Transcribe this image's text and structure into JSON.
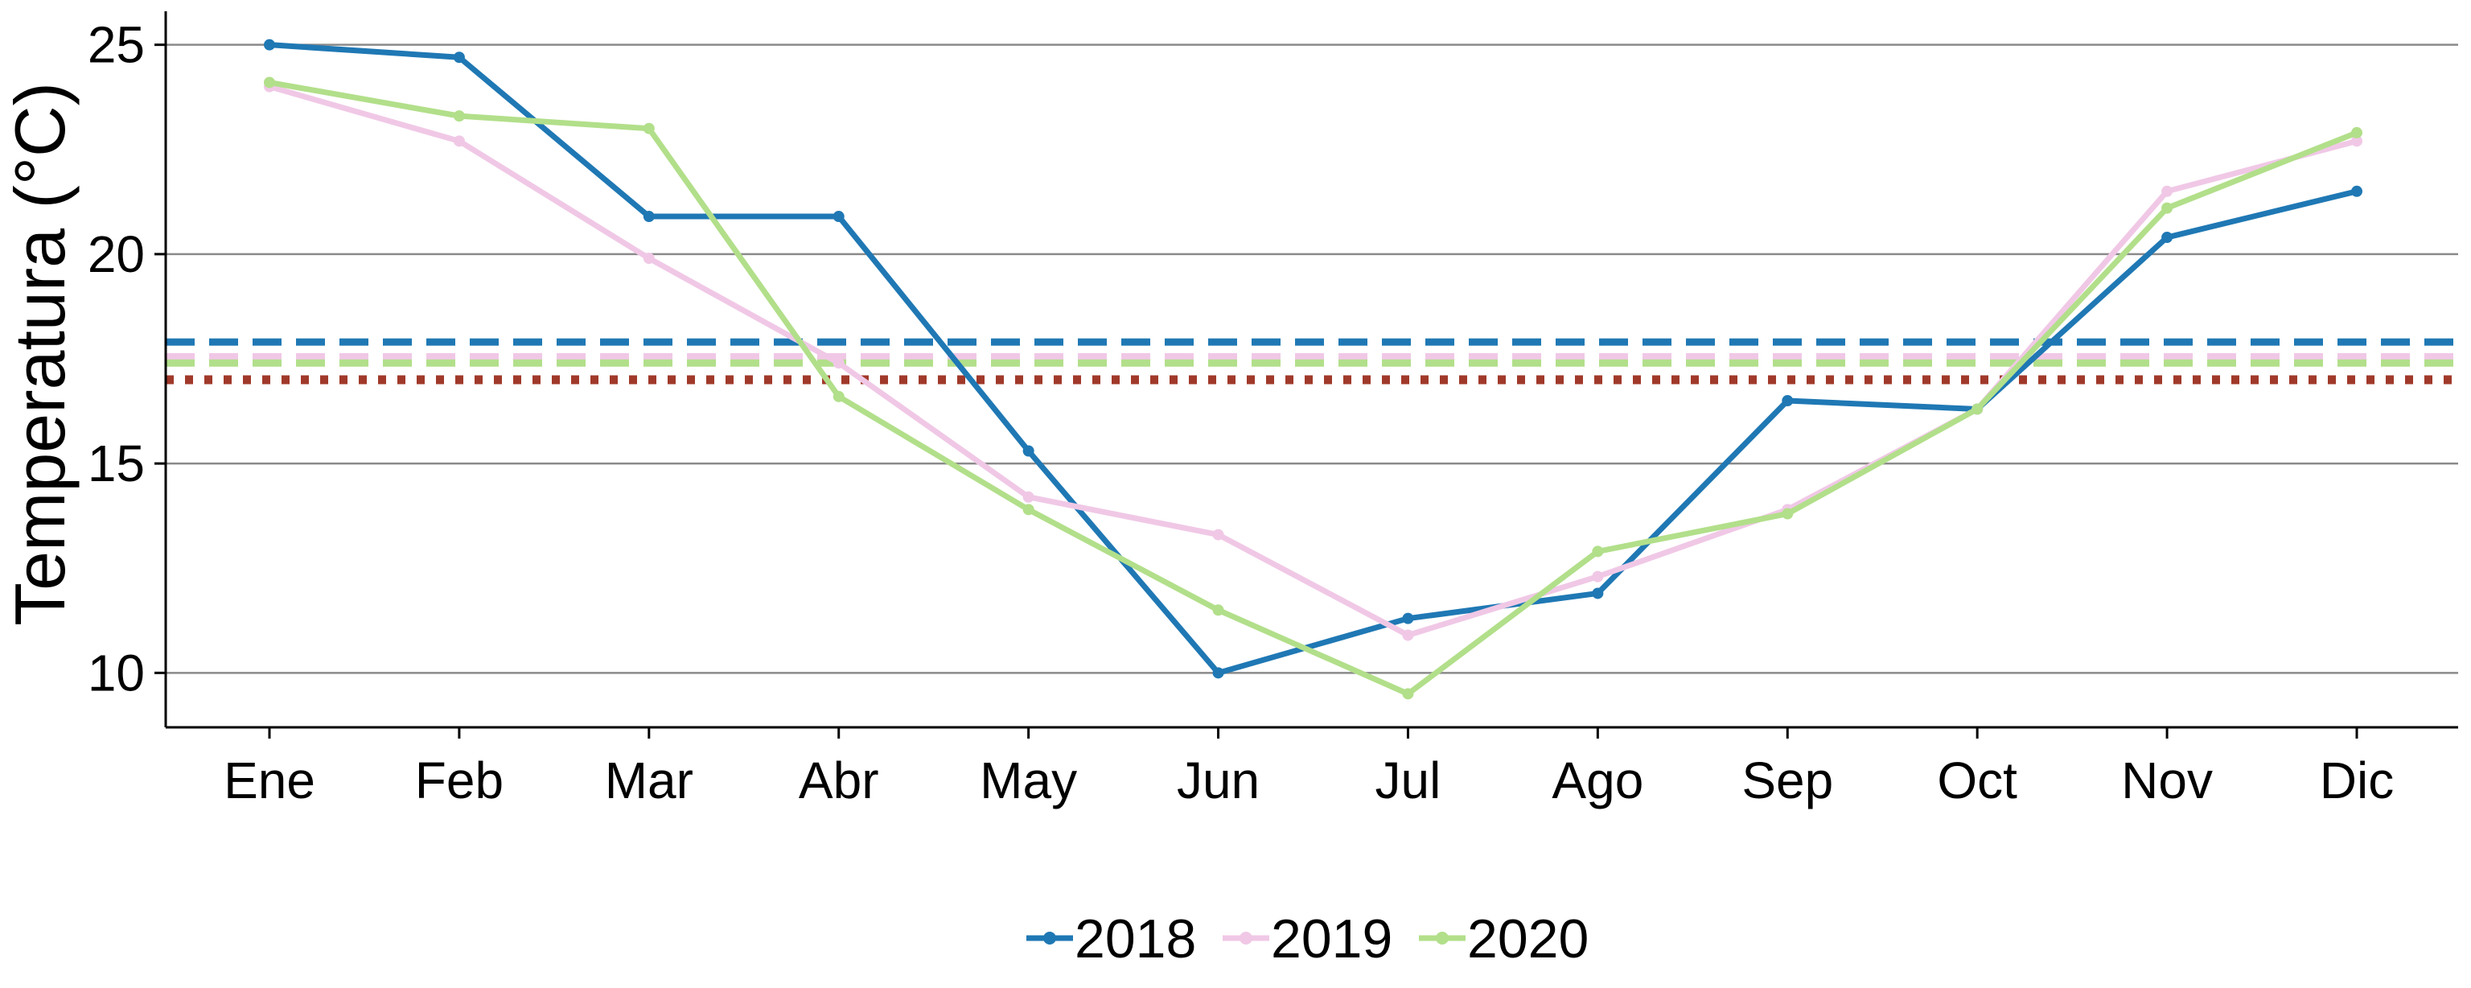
{
  "chart_data": {
    "type": "line",
    "title": "",
    "xlabel": "",
    "ylabel": "Temperatura (°C)",
    "categories": [
      "Ene",
      "Feb",
      "Mar",
      "Abr",
      "May",
      "Jun",
      "Jul",
      "Ago",
      "Sep",
      "Oct",
      "Nov",
      "Dic"
    ],
    "ylim": [
      8.7,
      25.8
    ],
    "yticks": [
      10,
      15,
      20,
      25
    ],
    "grid": "horizontal major",
    "legend_position": "bottom",
    "series": [
      {
        "name": "2018",
        "color": "#1f78b4",
        "values": [
          25.0,
          24.7,
          20.9,
          20.9,
          15.3,
          10.0,
          11.3,
          11.9,
          16.5,
          16.3,
          20.4,
          21.5
        ]
      },
      {
        "name": "2019",
        "color": "#f0c8e6",
        "values": [
          24.0,
          22.7,
          19.9,
          17.4,
          14.2,
          13.3,
          10.9,
          12.3,
          13.9,
          16.3,
          21.5,
          22.7
        ]
      },
      {
        "name": "2020",
        "color": "#b2df8a",
        "values": [
          24.1,
          23.3,
          23.0,
          16.6,
          13.9,
          11.5,
          9.5,
          12.9,
          13.8,
          16.3,
          21.1,
          22.9
        ]
      }
    ],
    "reference_lines": [
      {
        "series": "2018",
        "value": 17.9,
        "style": "dashed",
        "color": "#1f78b4"
      },
      {
        "series": "2019",
        "value": 17.55,
        "style": "dashed",
        "color": "#f0c8e6"
      },
      {
        "series": "2020",
        "value": 17.4,
        "style": "dashed",
        "color": "#b2df8a"
      },
      {
        "series": "",
        "value": 17.0,
        "style": "dotted",
        "color": "#a0392a"
      }
    ]
  }
}
